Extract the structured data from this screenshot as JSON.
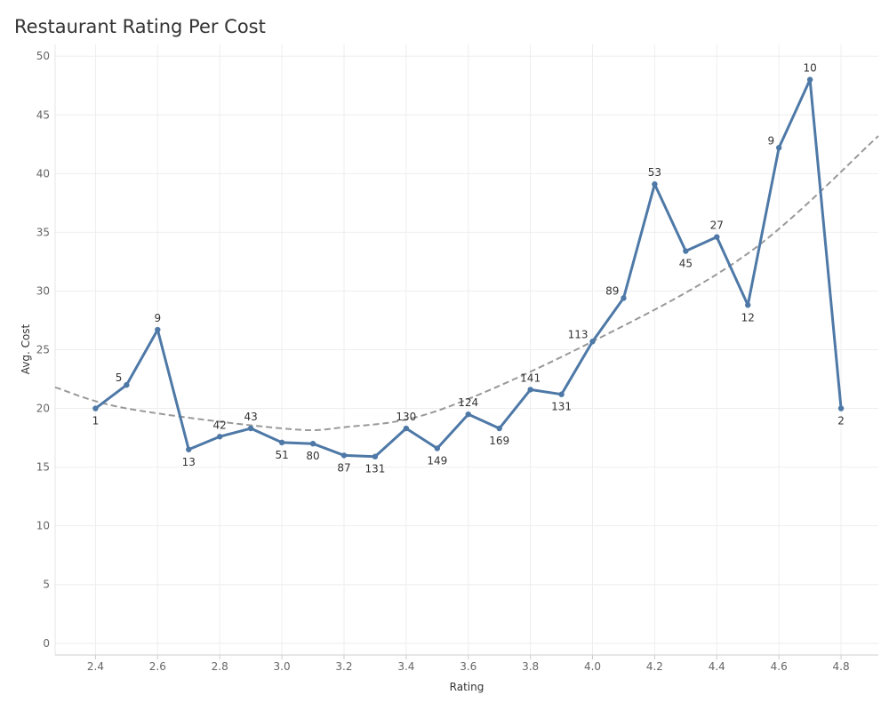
{
  "title": "Restaurant Rating Per Cost",
  "colors": {
    "series": "#4e79a7",
    "trend": "#999999",
    "grid": "#eeeeee"
  },
  "chart_data": {
    "type": "line",
    "title": "Restaurant Rating Per Cost",
    "xlabel": "Rating",
    "ylabel": "Avg. Cost",
    "xlim": [
      2.27,
      4.92
    ],
    "ylim": [
      -1,
      51
    ],
    "x_ticks": [
      2.4,
      2.6,
      2.8,
      3.0,
      3.2,
      3.4,
      3.6,
      3.8,
      4.0,
      4.2,
      4.4,
      4.6,
      4.8
    ],
    "y_ticks": [
      0,
      5,
      10,
      15,
      20,
      25,
      30,
      35,
      40,
      45,
      50
    ],
    "grid": true,
    "series": [
      {
        "points": [
          {
            "x": 2.4,
            "y": 20.0,
            "label": "1"
          },
          {
            "x": 2.5,
            "y": 22.0,
            "label": "5"
          },
          {
            "x": 2.6,
            "y": 26.7,
            "label": "9"
          },
          {
            "x": 2.7,
            "y": 16.5,
            "label": "13"
          },
          {
            "x": 2.8,
            "y": 17.6,
            "label": "42"
          },
          {
            "x": 2.9,
            "y": 18.3,
            "label": "43"
          },
          {
            "x": 3.0,
            "y": 17.1,
            "label": "51"
          },
          {
            "x": 3.1,
            "y": 17.0,
            "label": "80"
          },
          {
            "x": 3.2,
            "y": 16.0,
            "label": "87"
          },
          {
            "x": 3.3,
            "y": 15.9,
            "label": "131"
          },
          {
            "x": 3.4,
            "y": 18.3,
            "label": "130"
          },
          {
            "x": 3.5,
            "y": 16.6,
            "label": "149"
          },
          {
            "x": 3.6,
            "y": 19.5,
            "label": "124"
          },
          {
            "x": 3.7,
            "y": 18.3,
            "label": "169"
          },
          {
            "x": 3.8,
            "y": 21.6,
            "label": "141"
          },
          {
            "x": 3.9,
            "y": 21.2,
            "label": "131"
          },
          {
            "x": 4.0,
            "y": 25.7,
            "label": "113"
          },
          {
            "x": 4.1,
            "y": 29.4,
            "label": "89"
          },
          {
            "x": 4.2,
            "y": 39.1,
            "label": "53"
          },
          {
            "x": 4.3,
            "y": 33.4,
            "label": "45"
          },
          {
            "x": 4.4,
            "y": 34.6,
            "label": "27"
          },
          {
            "x": 4.5,
            "y": 28.8,
            "label": "12"
          },
          {
            "x": 4.6,
            "y": 42.2,
            "label": "9"
          },
          {
            "x": 4.7,
            "y": 48.0,
            "label": "10"
          },
          {
            "x": 4.8,
            "y": 20.0,
            "label": "2"
          }
        ]
      }
    ],
    "trend_line": {
      "kind": "polynomial",
      "points": [
        {
          "x": 2.27,
          "y": 21.8
        },
        {
          "x": 2.5,
          "y": 20.0
        },
        {
          "x": 3.0,
          "y": 18.3
        },
        {
          "x": 3.2,
          "y": 18.4
        },
        {
          "x": 3.5,
          "y": 19.8
        },
        {
          "x": 4.0,
          "y": 25.7
        },
        {
          "x": 4.5,
          "y": 33.2
        },
        {
          "x": 4.92,
          "y": 43.2
        }
      ]
    }
  }
}
